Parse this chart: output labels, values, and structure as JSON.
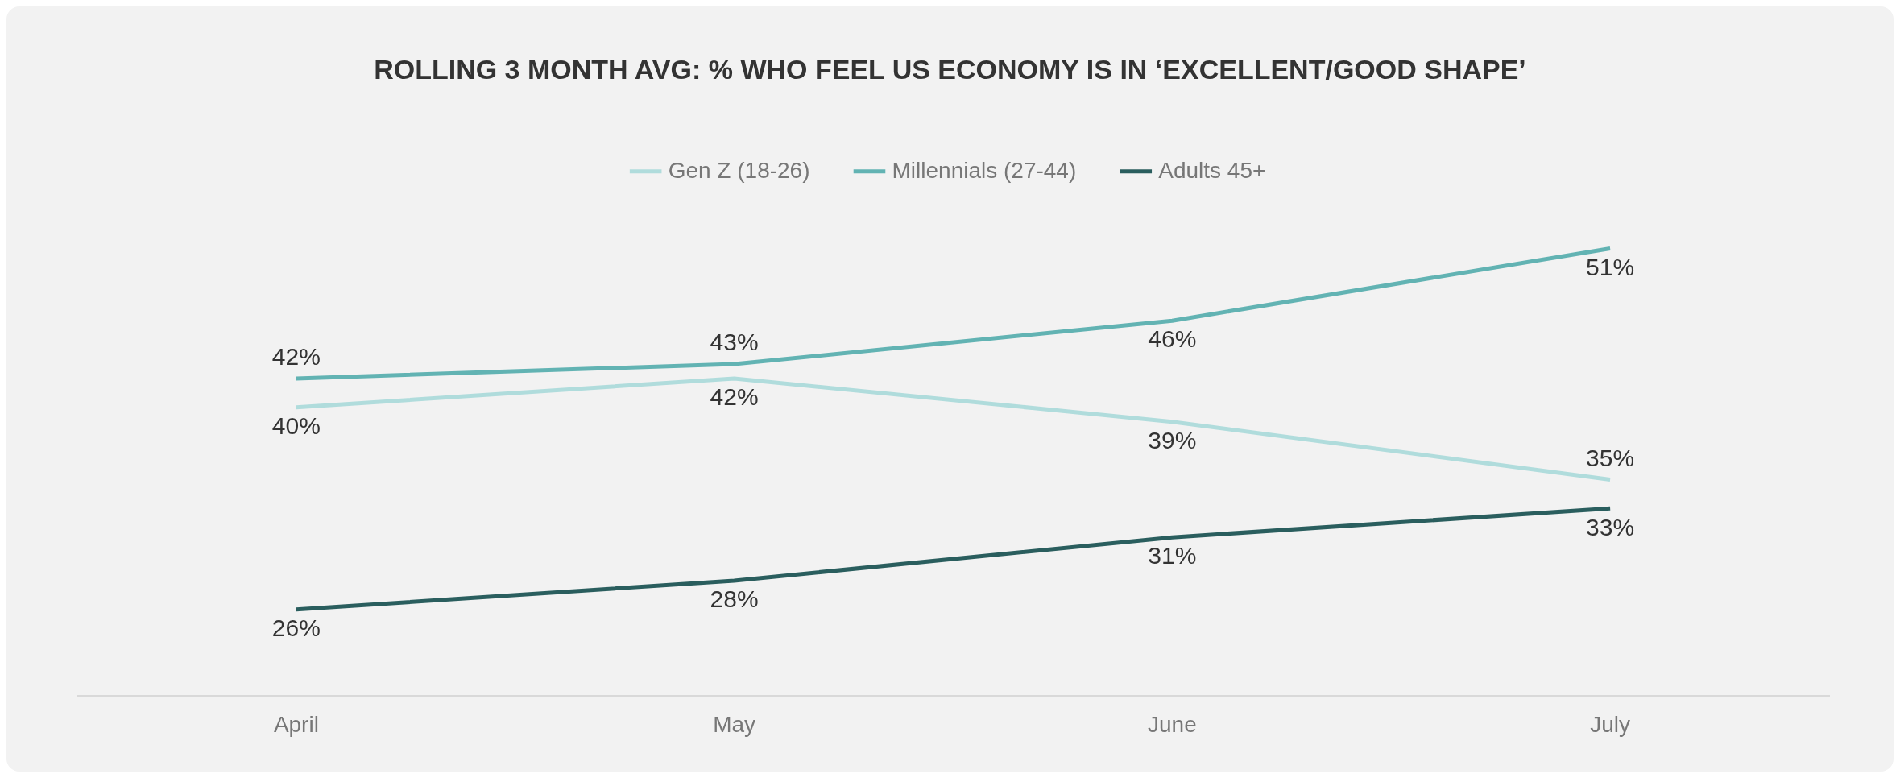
{
  "chart_data": {
    "type": "line",
    "title": "ROLLING 3 MONTH AVG: % WHO FEEL US ECONOMY IS IN ‘EXCELLENT/GOOD SHAPE’",
    "categories": [
      "April",
      "May",
      "June",
      "July"
    ],
    "relative": false,
    "legend": "top",
    "grid": false,
    "marker": "none",
    "line_style": "solid",
    "series": [
      {
        "name": "Gen Z (18-26)",
        "color": "#b0dcdc",
        "values": [
          40,
          42,
          39,
          35
        ],
        "value_labels": [
          "40%",
          "42%",
          "39%",
          "35%"
        ]
      },
      {
        "name": "Millennials (27-44)",
        "color": "#62b3b3",
        "values": [
          42,
          43,
          46,
          51
        ],
        "value_labels": [
          "42%",
          "43%",
          "46%",
          "51%"
        ]
      },
      {
        "name": "Adults 45+",
        "color": "#2a5e5e",
        "values": [
          26,
          28,
          31,
          33
        ],
        "value_labels": [
          "26%",
          "28%",
          "31%",
          "33%"
        ]
      }
    ]
  }
}
